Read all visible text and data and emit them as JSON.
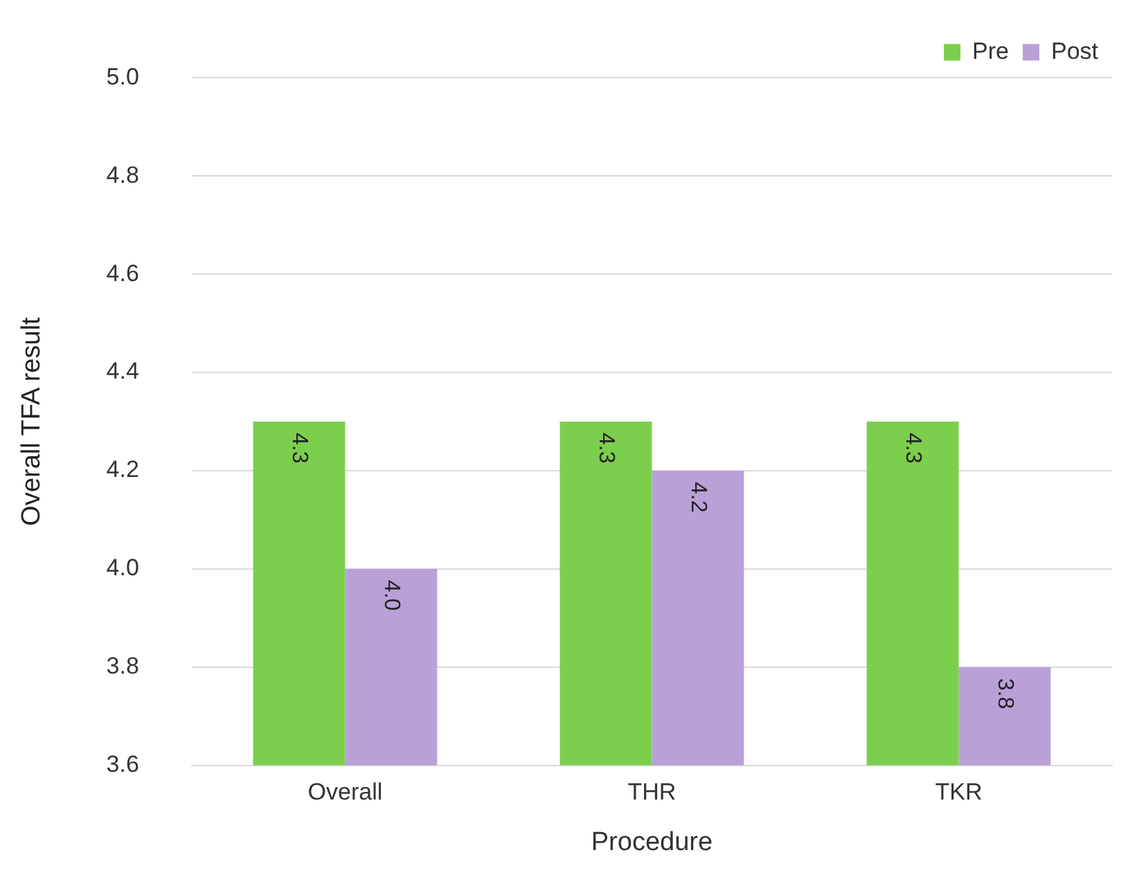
{
  "chart_data": {
    "type": "bar",
    "xlabel": "Procedure",
    "ylabel": "Overall TFA result",
    "categories": [
      "Overall",
      "THR",
      "TKR"
    ],
    "series": [
      {
        "name": "Pre",
        "color": "#7ccf4c",
        "values": [
          4.3,
          4.3,
          4.3
        ],
        "value_labels": [
          "4.3",
          "4.3",
          "4.3"
        ]
      },
      {
        "name": "Post",
        "color": "#b9a1d8",
        "values": [
          4.0,
          4.2,
          3.8
        ],
        "value_labels": [
          "4.0",
          "4.2",
          "3.8"
        ]
      }
    ],
    "ylim": [
      3.6,
      5.0
    ],
    "yticks": [
      {
        "value": 3.6,
        "label": "3.6"
      },
      {
        "value": 3.8,
        "label": "3.8"
      },
      {
        "value": 4.0,
        "label": "4.0"
      },
      {
        "value": 4.2,
        "label": "4.2"
      },
      {
        "value": 4.4,
        "label": "4.4"
      },
      {
        "value": 4.6,
        "label": "4.6"
      },
      {
        "value": 4.8,
        "label": "4.8"
      },
      {
        "value": 5.0,
        "label": "5.0"
      }
    ],
    "grid": "y",
    "legend": "top right"
  }
}
